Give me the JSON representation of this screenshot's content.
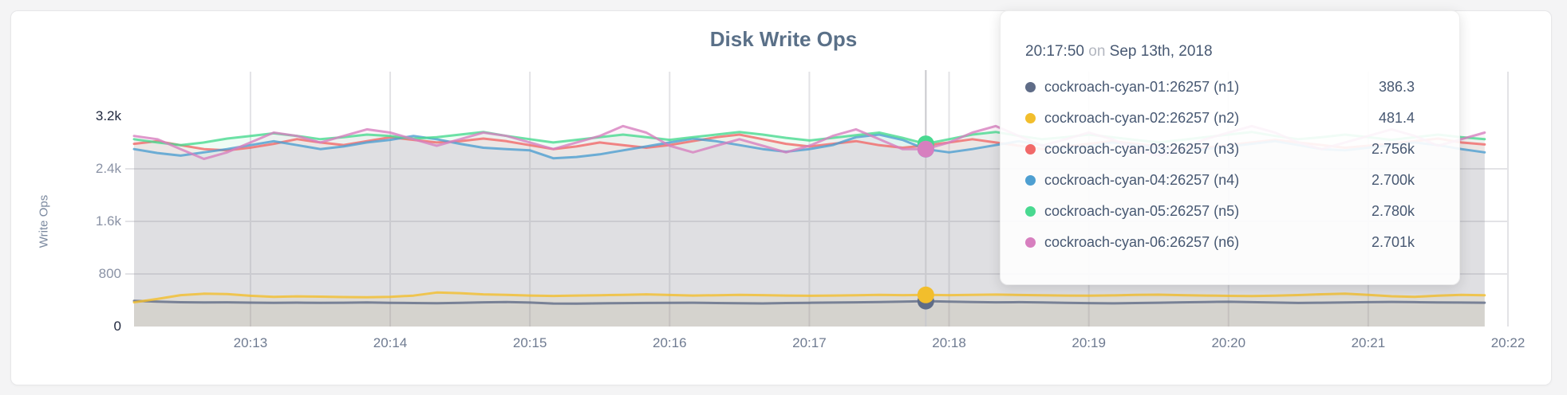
{
  "panel": {
    "title": "Disk Write Ops",
    "y_axis_title": "Write Ops"
  },
  "tooltip": {
    "time": "20:17:50",
    "on_word": "on",
    "date": "Sep 13th, 2018",
    "rows": [
      {
        "label": "cockroach-cyan-01:26257 (n1)",
        "value": "386.3",
        "color": "#5F6C87"
      },
      {
        "label": "cockroach-cyan-02:26257 (n2)",
        "value": "481.4",
        "color": "#F2BE2C"
      },
      {
        "label": "cockroach-cyan-03:26257 (n3)",
        "value": "2.756k",
        "color": "#F16969"
      },
      {
        "label": "cockroach-cyan-04:26257 (n4)",
        "value": "2.700k",
        "color": "#4E9FD1"
      },
      {
        "label": "cockroach-cyan-05:26257 (n5)",
        "value": "2.780k",
        "color": "#49D990"
      },
      {
        "label": "cockroach-cyan-06:26257 (n6)",
        "value": "2.701k",
        "color": "#D77FBF"
      }
    ]
  },
  "chart_data": {
    "type": "line",
    "title": "Disk Write Ops",
    "ylabel": "Write Ops",
    "xlabel": "",
    "grid": true,
    "legend_position": "tooltip-overlay",
    "ylim": [
      0,
      3200
    ],
    "y_ticks": [
      {
        "value": 3200,
        "label": "3.2k",
        "emphasis": true
      },
      {
        "value": 2400,
        "label": "2.4k",
        "emphasis": false
      },
      {
        "value": 1600,
        "label": "1.6k",
        "emphasis": false
      },
      {
        "value": 800,
        "label": "800",
        "emphasis": false
      },
      {
        "value": 0,
        "label": "0",
        "emphasis": true
      }
    ],
    "x_start_time": "20:12:10",
    "x_end_time": "20:22:00",
    "x_tick_labels": [
      "20:13",
      "20:14",
      "20:15",
      "20:16",
      "20:17",
      "20:18",
      "20:19",
      "20:20",
      "20:21",
      "20:22"
    ],
    "x_first_tick_offset_s": 50,
    "x_tick_interval_s": 60,
    "point_interval_s": 10,
    "hover_index": 34,
    "hover_time": "20:17:50",
    "series": [
      {
        "name": "cockroach-cyan-01:26257 (n1)",
        "color": "#5F6C87",
        "values": [
          392,
          378,
          370,
          366,
          369,
          364,
          361,
          364,
          360,
          363,
          366,
          360,
          357,
          355,
          360,
          368,
          372,
          365,
          350,
          348,
          353,
          356,
          359,
          361,
          363,
          358,
          354,
          352,
          357,
          361,
          365,
          369,
          373,
          378,
          386.3,
          379,
          373,
          369,
          371,
          366,
          361,
          356,
          353,
          357,
          363,
          369,
          373,
          377,
          371,
          365,
          359,
          363,
          367,
          371,
          374,
          371,
          367,
          365,
          363
        ]
      },
      {
        "name": "cockroach-cyan-02:26257 (n2)",
        "color": "#F2BE2C",
        "values": [
          368,
          420,
          478,
          500,
          494,
          468,
          452,
          460,
          455,
          449,
          445,
          452,
          470,
          518,
          508,
          490,
          481,
          471,
          466,
          471,
          476,
          481,
          490,
          480,
          471,
          476,
          481,
          478,
          472,
          468,
          471,
          476,
          481,
          478,
          481.4,
          477,
          482,
          486,
          480,
          476,
          471,
          469,
          474,
          481,
          485,
          478,
          471,
          467,
          463,
          470,
          479,
          491,
          501,
          481,
          461,
          452,
          470,
          481,
          476
        ]
      },
      {
        "name": "cockroach-cyan-03:26257 (n3)",
        "color": "#F16969",
        "values": [
          2781,
          2822,
          2760,
          2701,
          2681,
          2722,
          2781,
          2852,
          2801,
          2762,
          2822,
          2881,
          2841,
          2801,
          2822,
          2861,
          2821,
          2760,
          2701,
          2741,
          2801,
          2760,
          2721,
          2762,
          2822,
          2881,
          2921,
          2851,
          2781,
          2741,
          2781,
          2822,
          2760,
          2721,
          2756,
          2801,
          2851,
          2801,
          2751,
          2701,
          2741,
          2781,
          2821,
          2781,
          2741,
          2701,
          2721,
          2762,
          2801,
          2841,
          2801,
          2762,
          2721,
          2751,
          2781,
          2821,
          2861,
          2801,
          2771
        ]
      },
      {
        "name": "cockroach-cyan-04:26257 (n4)",
        "color": "#4E9FD1",
        "values": [
          2701,
          2641,
          2601,
          2651,
          2701,
          2761,
          2821,
          2761,
          2701,
          2741,
          2801,
          2841,
          2901,
          2851,
          2781,
          2721,
          2701,
          2681,
          2561,
          2581,
          2621,
          2681,
          2741,
          2801,
          2861,
          2821,
          2761,
          2701,
          2661,
          2701,
          2761,
          2881,
          2921,
          2841,
          2700,
          2651,
          2701,
          2761,
          2821,
          2761,
          2701,
          2741,
          2801,
          2761,
          2721,
          2681,
          2701,
          2741,
          2781,
          2821,
          2761,
          2701,
          2681,
          2721,
          2761,
          2801,
          2761,
          2701,
          2651
        ]
      },
      {
        "name": "cockroach-cyan-05:26257 (n5)",
        "color": "#49D990",
        "values": [
          2851,
          2801,
          2761,
          2801,
          2861,
          2901,
          2941,
          2901,
          2851,
          2881,
          2921,
          2901,
          2861,
          2881,
          2921,
          2961,
          2901,
          2851,
          2801,
          2841,
          2881,
          2921,
          2881,
          2841,
          2881,
          2921,
          2961,
          2921,
          2871,
          2831,
          2871,
          2911,
          2951,
          2871,
          2780,
          2851,
          2921,
          2961,
          2901,
          2851,
          2881,
          2921,
          2881,
          2841,
          2801,
          2841,
          2881,
          2921,
          2961,
          2901,
          2851,
          2881,
          2921,
          2881,
          2841,
          2881,
          2921,
          2881,
          2851
        ]
      },
      {
        "name": "cockroach-cyan-06:26257 (n6)",
        "color": "#D77FBF",
        "values": [
          2901,
          2851,
          2701,
          2551,
          2651,
          2801,
          2951,
          2901,
          2801,
          2901,
          3001,
          2951,
          2851,
          2751,
          2851,
          2951,
          2901,
          2801,
          2701,
          2801,
          2901,
          3051,
          2951,
          2751,
          2651,
          2751,
          2851,
          2751,
          2651,
          2751,
          2901,
          3001,
          2851,
          2701,
          2701,
          2801,
          2951,
          3051,
          2901,
          2751,
          2851,
          2951,
          2851,
          2701,
          2601,
          2701,
          2851,
          2951,
          3051,
          2951,
          2801,
          2701,
          2801,
          2901,
          3001,
          2901,
          2751,
          2851,
          2951
        ]
      }
    ]
  },
  "colors": {
    "grid": "#e3e3e6",
    "crosshair": "#c9c9cd",
    "axis_text": "#6f7b91",
    "axis_text_emphasis": "#20283e",
    "title_text": "#5a7088"
  }
}
